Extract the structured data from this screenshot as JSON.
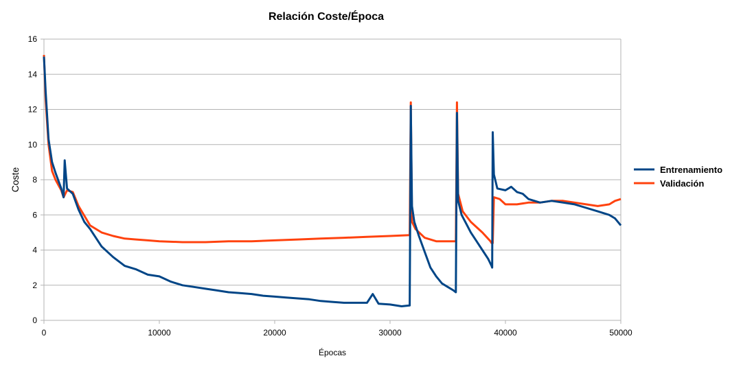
{
  "chart_data": {
    "type": "line",
    "title": "Relación Coste/Época",
    "xlabel": "Épocas",
    "ylabel": "Coste",
    "xlim": [
      0,
      50000
    ],
    "ylim": [
      0,
      16
    ],
    "xticks": [
      "0",
      "10000",
      "20000",
      "30000",
      "40000",
      "50000"
    ],
    "yticks": [
      "0",
      "2",
      "4",
      "6",
      "8",
      "10",
      "12",
      "14",
      "16"
    ],
    "grid": true,
    "legend_position": "right",
    "series": [
      {
        "name": "Entrenamiento",
        "color": "#004586",
        "x": [
          0,
          150,
          400,
          700,
          1000,
          1500,
          1700,
          1800,
          2000,
          2500,
          3000,
          3500,
          4000,
          5000,
          6000,
          7000,
          8000,
          9000,
          10000,
          11000,
          12000,
          13000,
          14000,
          15000,
          16000,
          17000,
          18000,
          19000,
          20000,
          21000,
          22000,
          23000,
          24000,
          25000,
          26000,
          27000,
          28000,
          28500,
          29000,
          30000,
          31000,
          31700,
          31800,
          31900,
          32100,
          32500,
          33000,
          33500,
          34000,
          34500,
          35000,
          35500,
          35700,
          35800,
          35900,
          36200,
          36600,
          37000,
          37500,
          38000,
          38500,
          38800,
          38850,
          38900,
          39000,
          39300,
          40000,
          40500,
          41000,
          41500,
          42000,
          43000,
          44000,
          45000,
          46000,
          47000,
          48000,
          49000,
          49500,
          50000
        ],
        "values": [
          15.0,
          13.0,
          10.3,
          9.0,
          8.4,
          7.5,
          7.0,
          9.1,
          7.5,
          7.2,
          6.3,
          5.6,
          5.2,
          4.2,
          3.6,
          3.1,
          2.9,
          2.6,
          2.5,
          2.2,
          2.0,
          1.9,
          1.8,
          1.7,
          1.6,
          1.55,
          1.5,
          1.4,
          1.35,
          1.3,
          1.25,
          1.2,
          1.1,
          1.05,
          1.0,
          1.0,
          1.0,
          1.5,
          0.95,
          0.9,
          0.8,
          0.85,
          12.2,
          6.5,
          5.6,
          4.8,
          3.9,
          3.0,
          2.5,
          2.1,
          1.9,
          1.7,
          1.6,
          11.8,
          6.8,
          6.0,
          5.5,
          5.0,
          4.5,
          4.0,
          3.5,
          3.1,
          3.0,
          10.7,
          8.3,
          7.5,
          7.4,
          7.6,
          7.3,
          7.2,
          6.9,
          6.7,
          6.8,
          6.7,
          6.6,
          6.4,
          6.2,
          6.0,
          5.8,
          5.4
        ]
      },
      {
        "name": "Validación",
        "color": "#ff420e",
        "x": [
          0,
          150,
          400,
          700,
          1000,
          1500,
          1700,
          2000,
          2500,
          3000,
          4000,
          5000,
          6000,
          7000,
          8000,
          9000,
          10000,
          12000,
          14000,
          16000,
          18000,
          20000,
          22000,
          24000,
          26000,
          28000,
          30000,
          31700,
          31800,
          31900,
          32200,
          33000,
          34000,
          35000,
          35500,
          35700,
          35800,
          35900,
          36300,
          37000,
          38000,
          38700,
          38800,
          38900,
          39000,
          39500,
          40000,
          41000,
          42000,
          43000,
          44000,
          45000,
          46000,
          47000,
          48000,
          49000,
          49500,
          50000
        ],
        "values": [
          15.1,
          12.5,
          10.0,
          8.5,
          8.0,
          7.4,
          7.0,
          7.4,
          7.3,
          6.5,
          5.4,
          5.0,
          4.8,
          4.65,
          4.6,
          4.55,
          4.5,
          4.45,
          4.45,
          4.5,
          4.5,
          4.55,
          4.6,
          4.65,
          4.7,
          4.75,
          4.8,
          4.85,
          12.4,
          5.6,
          5.2,
          4.7,
          4.5,
          4.5,
          4.5,
          4.5,
          12.4,
          7.2,
          6.2,
          5.6,
          5.0,
          4.5,
          4.4,
          4.4,
          7.0,
          6.9,
          6.6,
          6.6,
          6.7,
          6.7,
          6.8,
          6.8,
          6.7,
          6.6,
          6.5,
          6.6,
          6.8,
          6.9
        ]
      }
    ]
  }
}
